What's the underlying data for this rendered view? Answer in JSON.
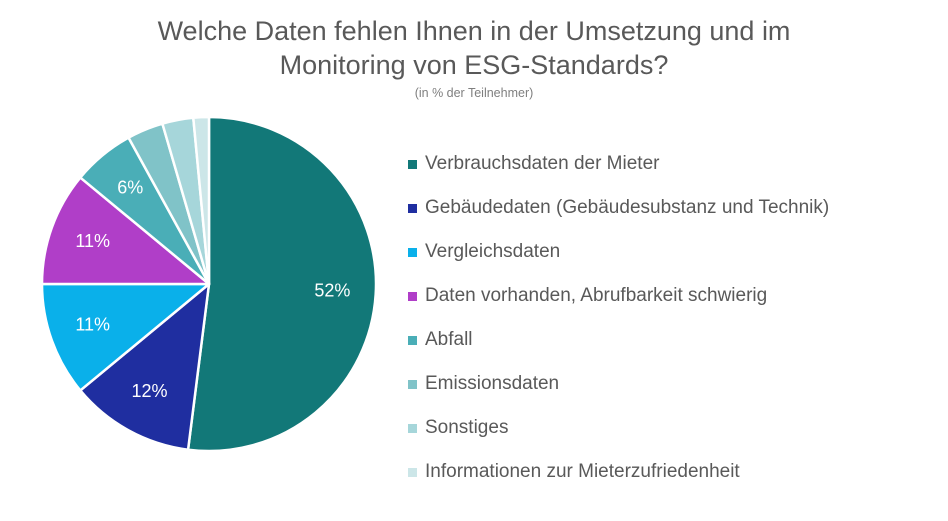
{
  "chart_data": {
    "type": "pie",
    "title_line1": "Welche Daten fehlen Ihnen in der Umsetzung und im",
    "title_line2": "Monitoring von ESG-Standards?",
    "subtitle": "(in % der Teilnehmer)",
    "legend_position": "right",
    "slices": [
      {
        "name": "Verbrauchsdaten der Mieter",
        "value": 52,
        "label": "52%",
        "color": "#127878"
      },
      {
        "name": "Gebäudedaten (Gebäudesubstanz und Technik)",
        "value": 12,
        "label": "12%",
        "color": "#1f2ea0"
      },
      {
        "name": "Vergleichsdaten",
        "value": 11,
        "label": "11%",
        "color": "#0ab0ea"
      },
      {
        "name": "Daten vorhanden, Abrufbarkeit schwierig",
        "value": 11,
        "label": "11%",
        "color": "#b03ec8"
      },
      {
        "name": "Abfall",
        "value": 6,
        "label": "6%",
        "color": "#4aaeb7"
      },
      {
        "name": "Emissionsdaten",
        "value": 3.5,
        "label": "",
        "color": "#80c3c8"
      },
      {
        "name": "Sonstiges",
        "value": 3,
        "label": "",
        "color": "#a6d6da"
      },
      {
        "name": "Informationen zur Mieterzufriedenheit",
        "value": 1.5,
        "label": "",
        "color": "#cce6e8"
      }
    ]
  }
}
